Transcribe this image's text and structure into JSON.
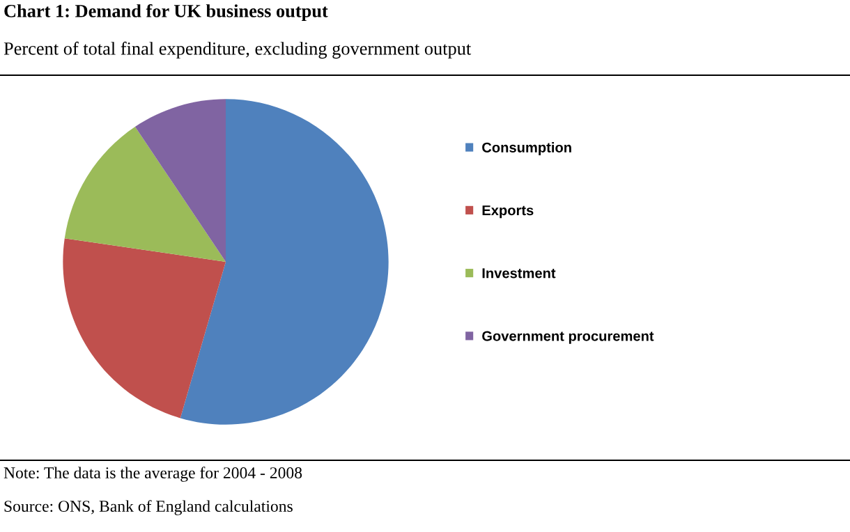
{
  "chart_data": {
    "type": "pie",
    "title": "Chart 1: Demand for UK business output",
    "subtitle": "Percent of total final expenditure, excluding government output",
    "categories": [
      "Consumption",
      "Exports",
      "Investment",
      "Government procurement"
    ],
    "values": [
      54.5,
      22.8,
      13.3,
      9.4
    ],
    "colors": [
      "#4f81bd",
      "#c0504d",
      "#9bbb59",
      "#8064a2"
    ],
    "legend": "right",
    "annotations": [
      "Note: The data is the average for 2004 - 2008",
      "Source: ONS, Bank of England calculations"
    ]
  }
}
